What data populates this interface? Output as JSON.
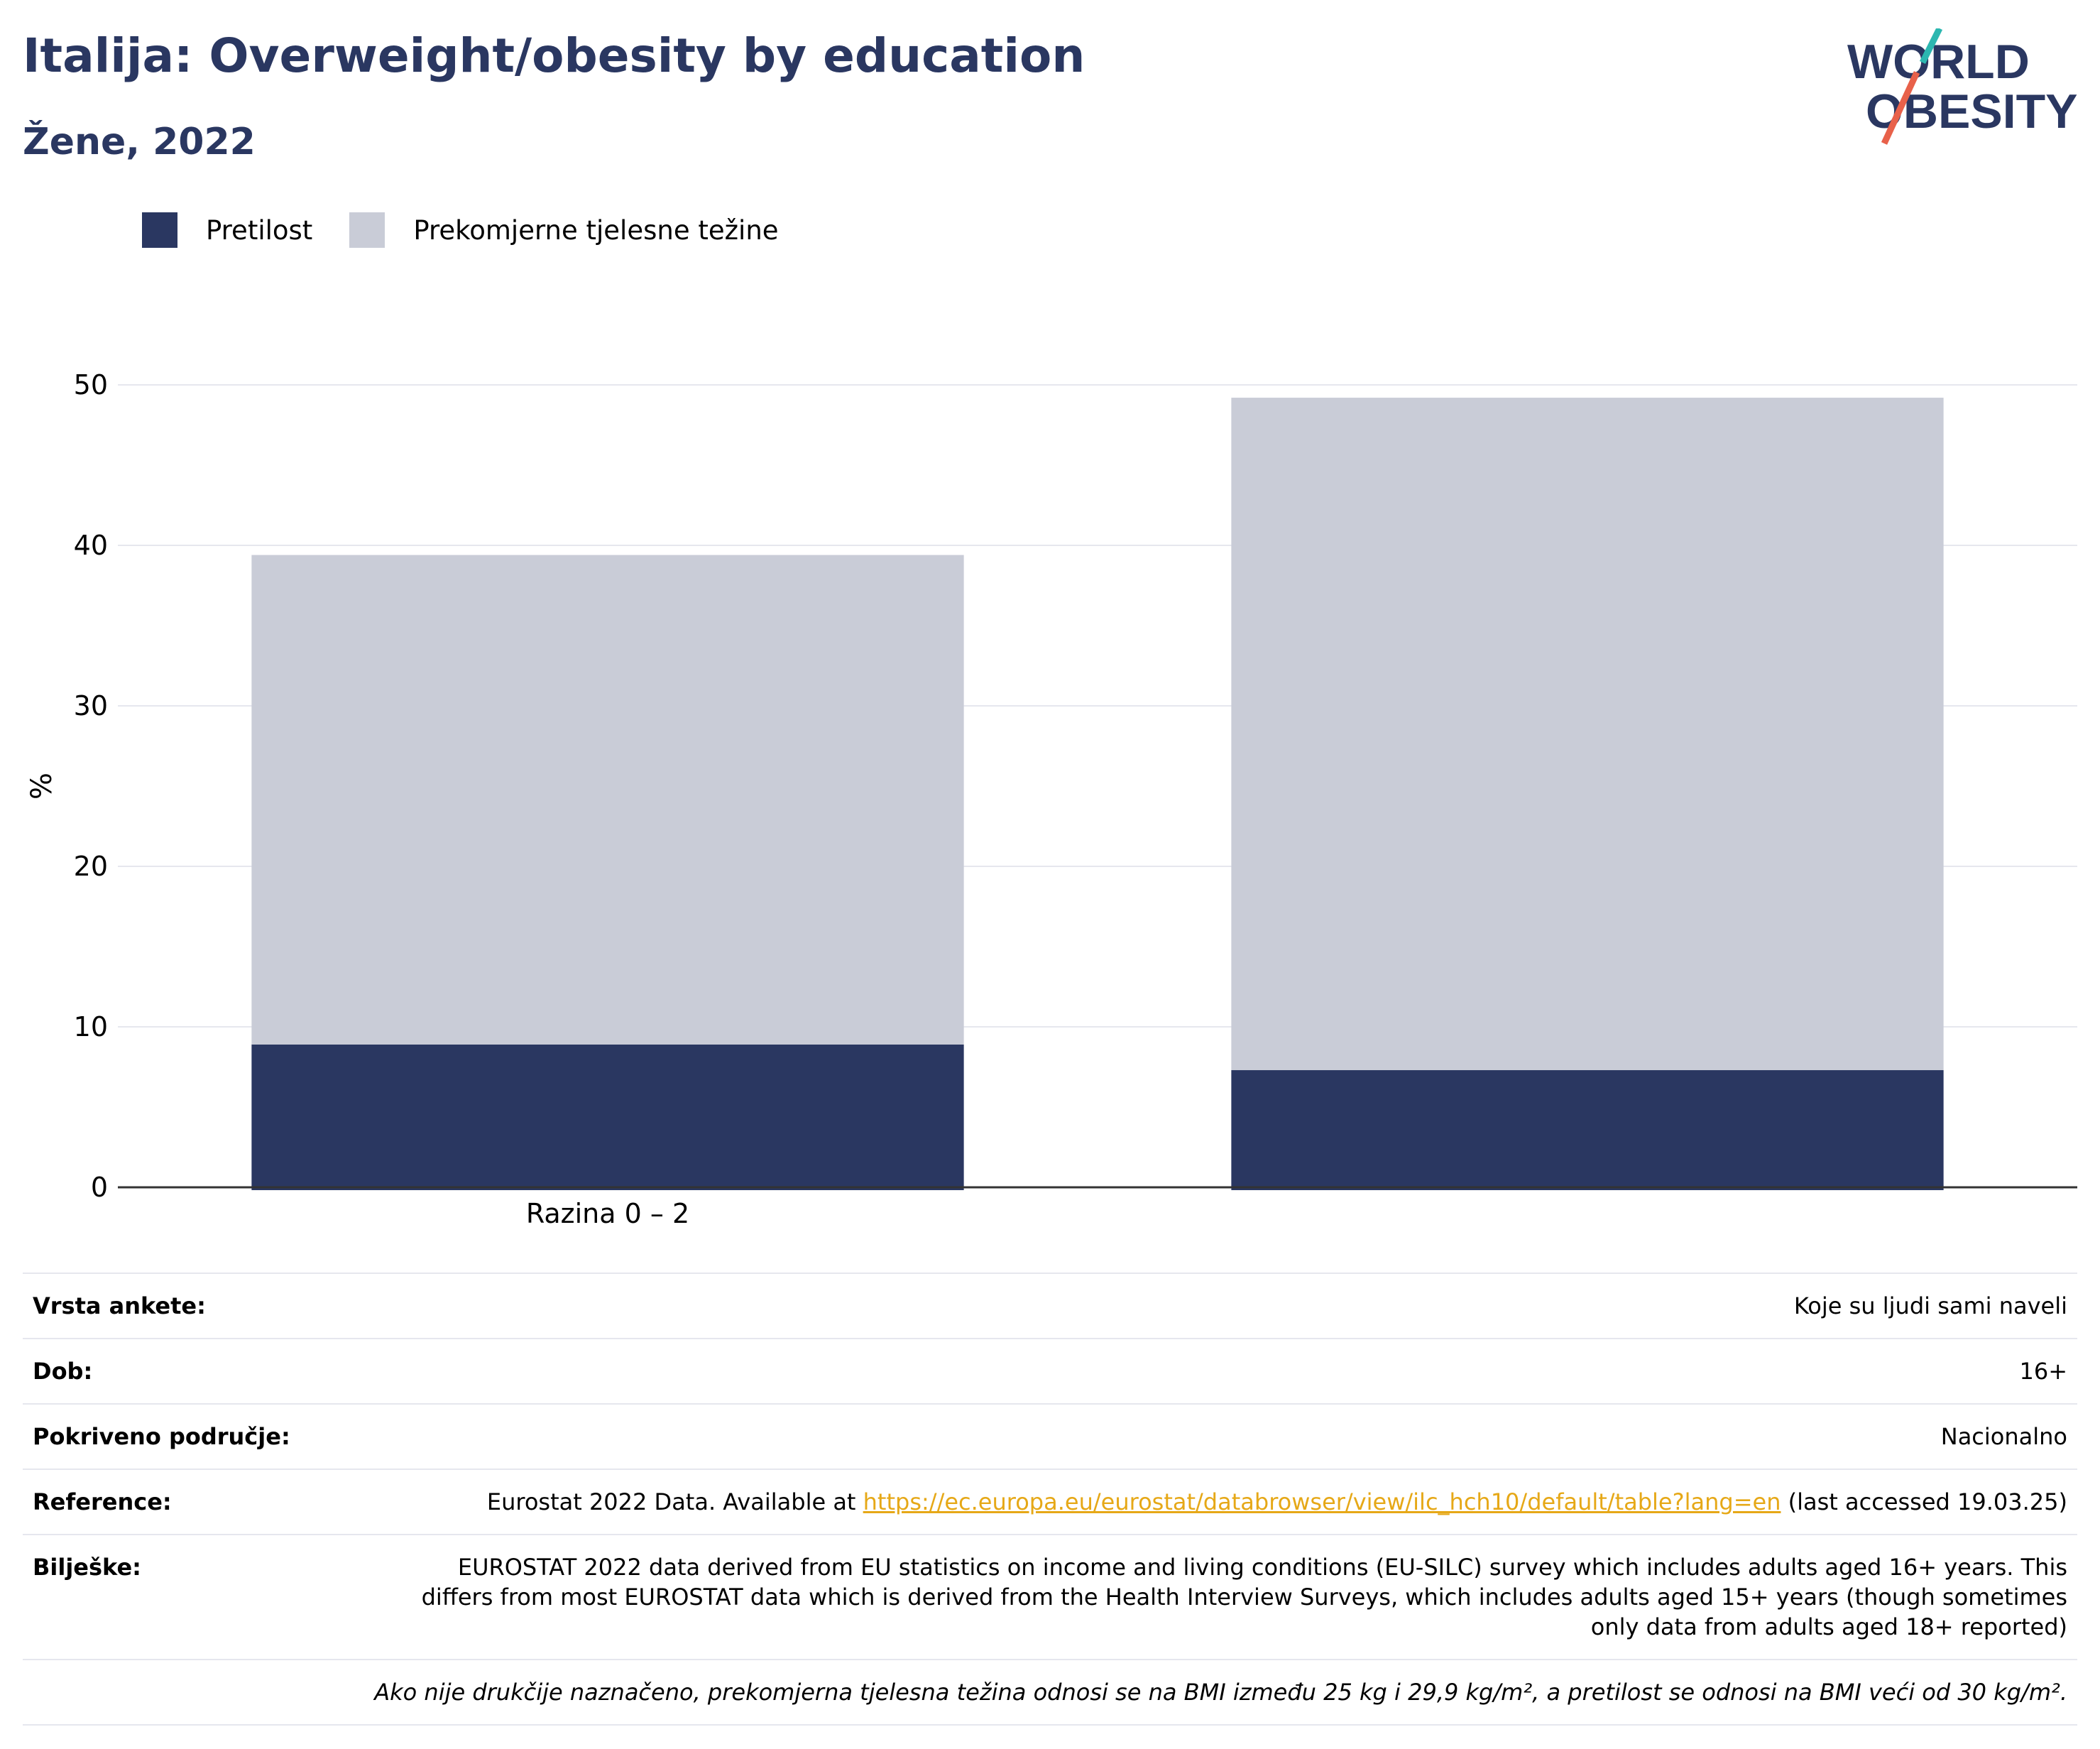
{
  "header": {
    "title": "Italija: Overweight/obesity by education",
    "subtitle": "Žene, 2022"
  },
  "logo": {
    "line1": "WORLD",
    "line2": "OBESITY"
  },
  "colors": {
    "obesity": "#2a3761",
    "overweight": "#c9ccd7",
    "title": "#2a3761",
    "link": "#e6a817",
    "grid": "#e6e7ee"
  },
  "chart_data": {
    "type": "bar",
    "stacked": true,
    "categories": [
      "Razina 0 – 2",
      ""
    ],
    "series": [
      {
        "name": "Pretilost",
        "values": [
          8.9,
          7.3
        ]
      },
      {
        "name": "Prekomjerne tjelesne težine",
        "values": [
          30.5,
          41.9
        ]
      }
    ],
    "ylabel": "%",
    "ylim": [
      0,
      50
    ],
    "yticks": [
      0,
      10,
      20,
      30,
      40,
      50
    ],
    "grid": true,
    "legend": "top-left"
  },
  "meta": {
    "rows": [
      {
        "key": "Vrsta ankete:",
        "value": "Koje su ljudi sami naveli"
      },
      {
        "key": "Dob:",
        "value": "16+"
      },
      {
        "key": "Pokriveno područje:",
        "value": "Nacionalno"
      }
    ],
    "reference": {
      "key": "Reference:",
      "prefix": "Eurostat 2022 Data. Available at ",
      "link": "https://ec.europa.eu/eurostat/databrowser/view/ilc_hch10/default/table?lang=en",
      "suffix": " (last accessed 19.03.25)"
    },
    "notes": {
      "key": "Bilješke:",
      "value": "EUROSTAT 2022 data derived from EU statistics on income and living conditions (EU-SILC) survey which includes adults aged 16+ years. This differs from most EUROSTAT data which is derived from the Health Interview Surveys, which includes adults aged 15+ years (though sometimes only data from adults aged 18+ reported)"
    },
    "footnote": "Ako nije drukčije naznačeno, prekomjerna tjelesna težina odnosi se na BMI između 25 kg i 29,9 kg/m², a pretilost se odnosi na BMI veći od 30 kg/m²."
  }
}
